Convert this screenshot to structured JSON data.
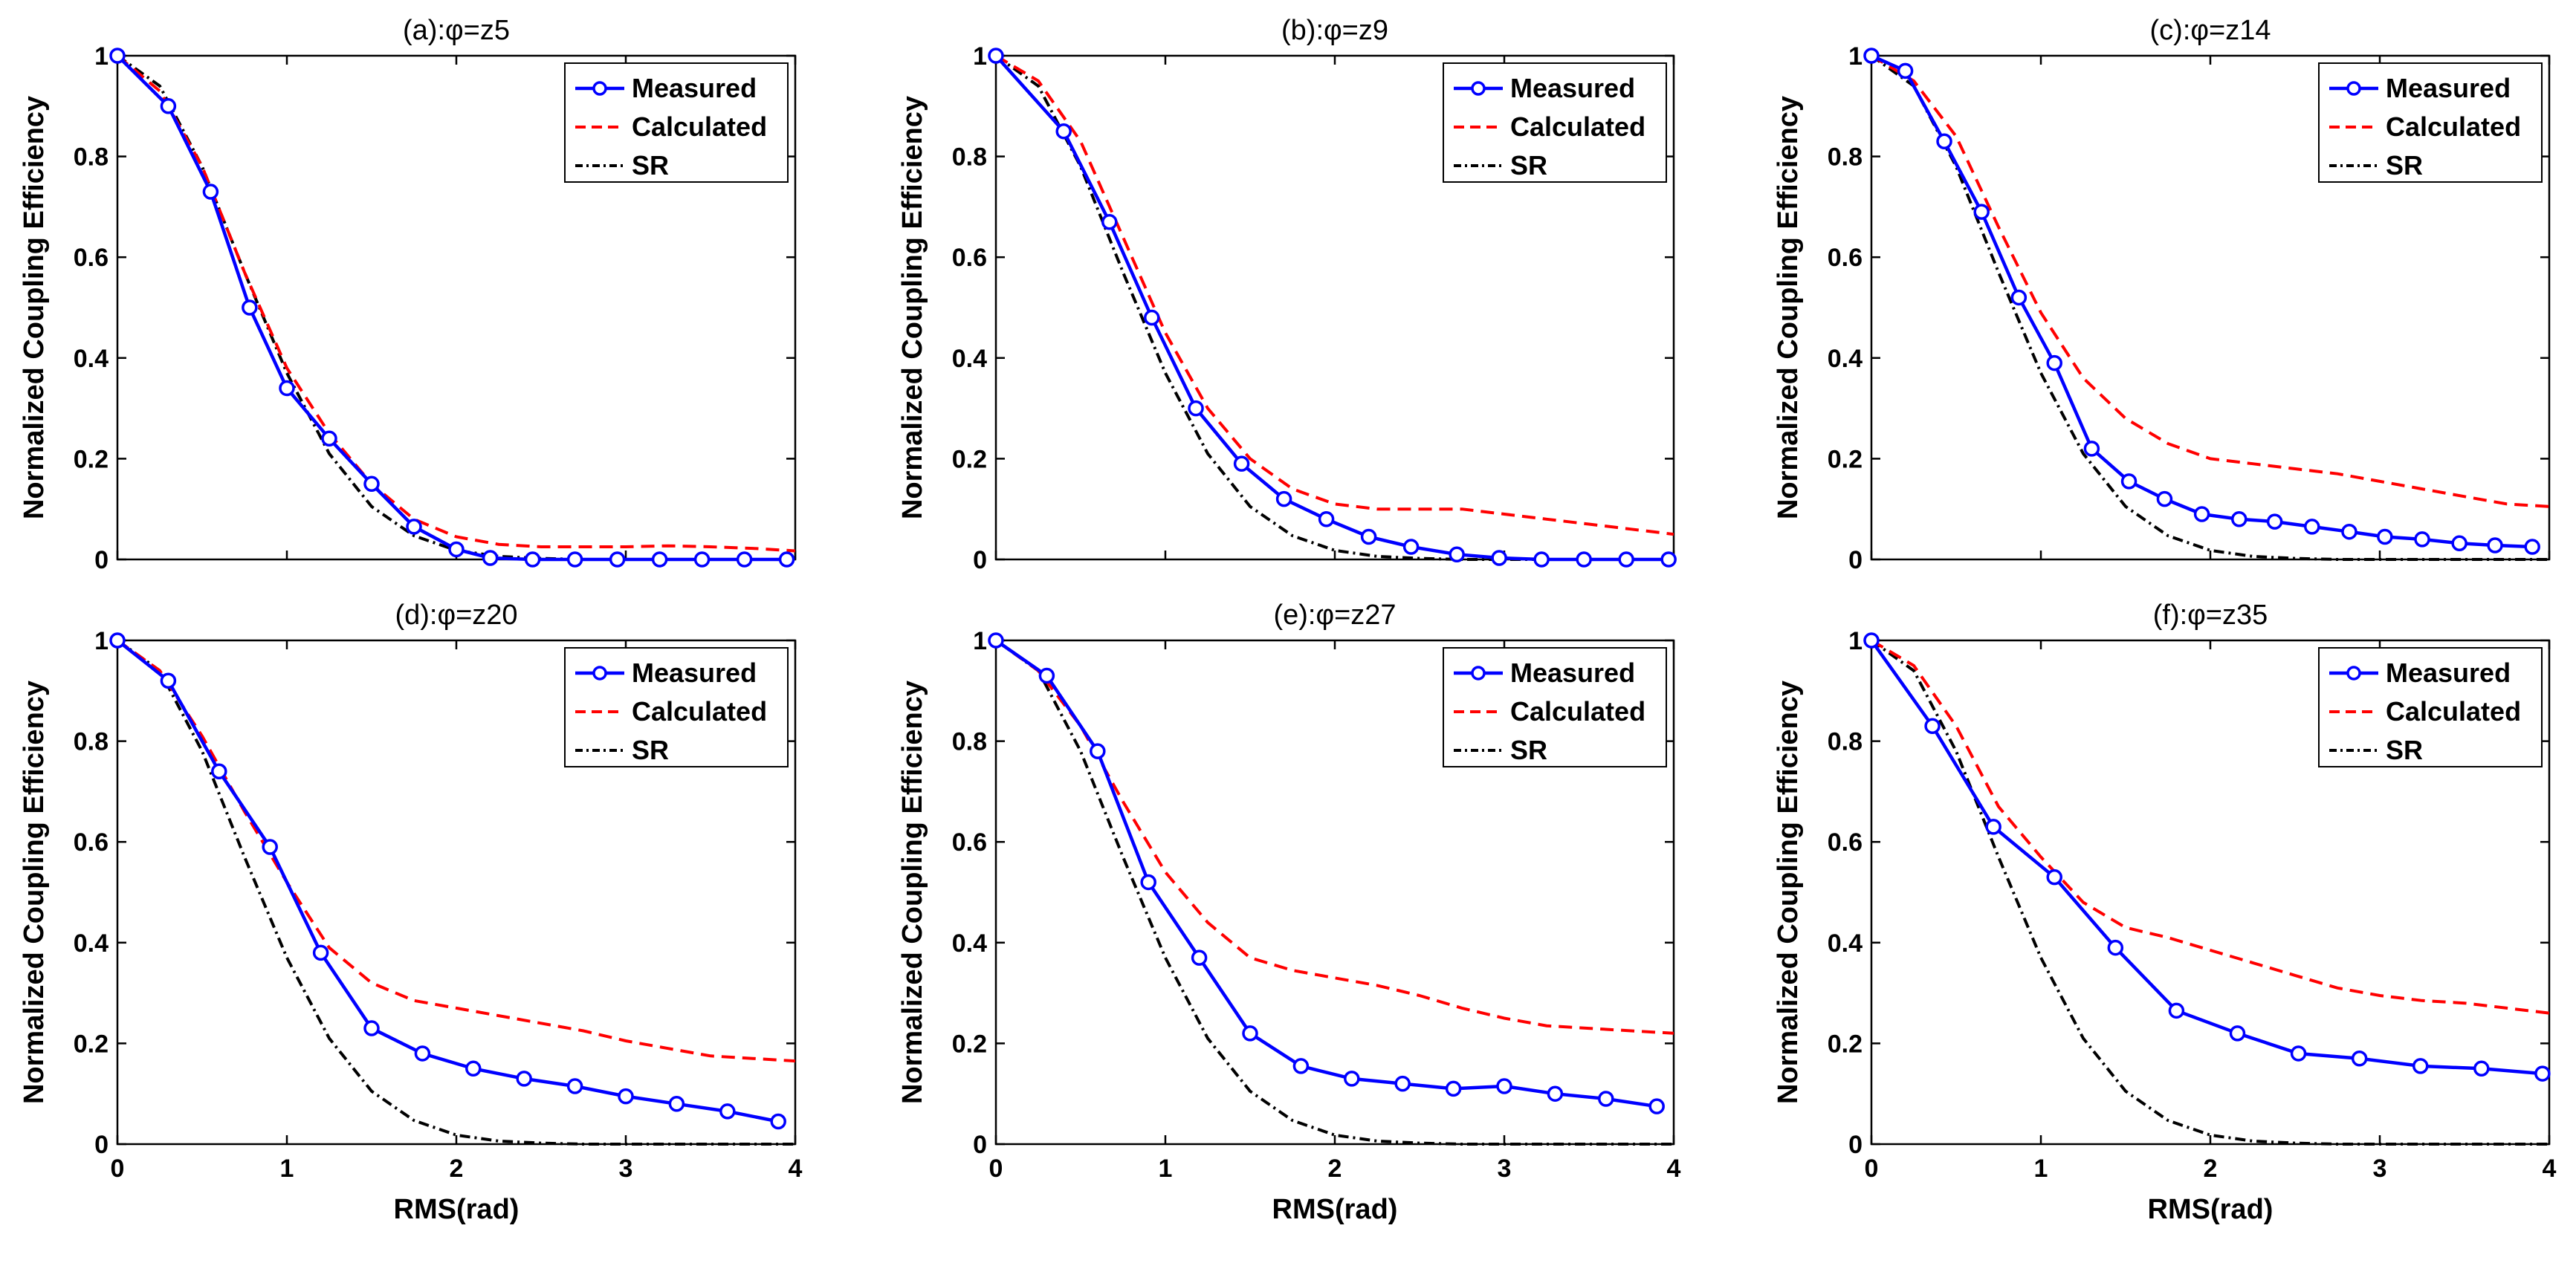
{
  "figure": {
    "background": "#ffffff",
    "colors": {
      "measured": "#0000ff",
      "calculated": "#ff0000",
      "sr": "#000000"
    },
    "legend_position": "top-right"
  },
  "chart_data": [
    {
      "type": "line",
      "title": "(a):φ=z5",
      "xlabel": "",
      "ylabel": "Normalized Coupling Efficiency",
      "xlim": [
        0,
        4
      ],
      "ylim": [
        0,
        1
      ],
      "xticks": [
        0,
        1,
        2,
        3,
        4
      ],
      "yticks": [
        0,
        0.2,
        0.4,
        0.6,
        0.8,
        1
      ],
      "xtick_labels": [
        "0",
        "1",
        "2",
        "3",
        "4"
      ],
      "ytick_labels": [
        "0",
        "0.2",
        "0.4",
        "0.6",
        "0.8",
        "1"
      ],
      "legend": "top-right",
      "grid": false,
      "series": [
        {
          "name": "Measured",
          "style": "solid-circle",
          "color": "#0000ff",
          "x": [
            0,
            0.3,
            0.55,
            0.78,
            1.0,
            1.25,
            1.5,
            1.75,
            2.0,
            2.2,
            2.45,
            2.7,
            2.95,
            3.2,
            3.45,
            3.7,
            3.95
          ],
          "y": [
            1.0,
            0.9,
            0.73,
            0.5,
            0.34,
            0.24,
            0.15,
            0.065,
            0.02,
            0.003,
            0.0,
            0.0,
            0.0,
            0.0,
            0.0,
            0.0,
            0.0
          ]
        },
        {
          "name": "Calculated",
          "style": "dashed",
          "color": "#ff0000",
          "x": [
            0,
            0.25,
            0.5,
            0.75,
            1.0,
            1.25,
            1.5,
            1.75,
            2.0,
            2.25,
            2.5,
            2.75,
            3.0,
            3.25,
            3.5,
            3.75,
            4.0
          ],
          "y": [
            1.0,
            0.93,
            0.78,
            0.57,
            0.38,
            0.25,
            0.15,
            0.08,
            0.045,
            0.03,
            0.025,
            0.025,
            0.025,
            0.027,
            0.025,
            0.022,
            0.017
          ]
        },
        {
          "name": "SR",
          "style": "dashdot",
          "color": "#000000",
          "x": [
            0,
            0.25,
            0.5,
            0.75,
            1.0,
            1.25,
            1.5,
            1.75,
            2.0,
            2.25,
            2.5,
            2.75,
            3.0,
            3.5,
            4.0
          ],
          "y": [
            1.0,
            0.94,
            0.78,
            0.57,
            0.37,
            0.21,
            0.105,
            0.047,
            0.018,
            0.006,
            0.002,
            0.0,
            0.0,
            0.0,
            0.0
          ]
        }
      ]
    },
    {
      "type": "line",
      "title": "(b):φ=z9",
      "xlabel": "",
      "ylabel": "Normalized Coupling Efficiency",
      "xlim": [
        0,
        4
      ],
      "ylim": [
        0,
        1
      ],
      "xticks": [
        0,
        1,
        2,
        3,
        4
      ],
      "yticks": [
        0,
        0.2,
        0.4,
        0.6,
        0.8,
        1
      ],
      "xtick_labels": [
        "0",
        "1",
        "2",
        "3",
        "4"
      ],
      "ytick_labels": [
        "0",
        "0.2",
        "0.4",
        "0.6",
        "0.8",
        "1"
      ],
      "legend": "top-right",
      "grid": false,
      "series": [
        {
          "name": "Measured",
          "style": "solid-circle",
          "color": "#0000ff",
          "x": [
            0,
            0.4,
            0.67,
            0.92,
            1.18,
            1.45,
            1.7,
            1.95,
            2.2,
            2.45,
            2.72,
            2.97,
            3.22,
            3.47,
            3.72,
            3.97
          ],
          "y": [
            1.0,
            0.85,
            0.67,
            0.48,
            0.3,
            0.19,
            0.12,
            0.08,
            0.045,
            0.025,
            0.01,
            0.003,
            0.0,
            0.0,
            0.0,
            0.0
          ]
        },
        {
          "name": "Calculated",
          "style": "dashed",
          "color": "#ff0000",
          "x": [
            0,
            0.25,
            0.5,
            0.75,
            1.0,
            1.25,
            1.5,
            1.75,
            2.0,
            2.25,
            2.5,
            2.75,
            3.0,
            3.25,
            3.5,
            3.75,
            4.0
          ],
          "y": [
            1.0,
            0.95,
            0.83,
            0.64,
            0.45,
            0.3,
            0.2,
            0.14,
            0.11,
            0.1,
            0.1,
            0.1,
            0.09,
            0.08,
            0.07,
            0.06,
            0.05
          ]
        },
        {
          "name": "SR",
          "style": "dashdot",
          "color": "#000000",
          "x": [
            0,
            0.25,
            0.5,
            0.75,
            1.0,
            1.25,
            1.5,
            1.75,
            2.0,
            2.25,
            2.5,
            2.75,
            3.0,
            3.5,
            4.0
          ],
          "y": [
            1.0,
            0.94,
            0.78,
            0.57,
            0.37,
            0.21,
            0.105,
            0.047,
            0.018,
            0.006,
            0.002,
            0.0,
            0.0,
            0.0,
            0.0
          ]
        }
      ]
    },
    {
      "type": "line",
      "title": "(c):φ=z14",
      "xlabel": "",
      "ylabel": "Normalized Coupling Efficiency",
      "xlim": [
        0,
        4
      ],
      "ylim": [
        0,
        1
      ],
      "xticks": [
        0,
        1,
        2,
        3,
        4
      ],
      "yticks": [
        0,
        0.2,
        0.4,
        0.6,
        0.8,
        1
      ],
      "xtick_labels": [
        "0",
        "1",
        "2",
        "3",
        "4"
      ],
      "ytick_labels": [
        "0",
        "0.2",
        "0.4",
        "0.6",
        "0.8",
        "1"
      ],
      "legend": "top-right",
      "grid": false,
      "series": [
        {
          "name": "Measured",
          "style": "solid-circle",
          "color": "#0000ff",
          "x": [
            0,
            0.2,
            0.43,
            0.65,
            0.87,
            1.08,
            1.3,
            1.52,
            1.73,
            1.95,
            2.17,
            2.38,
            2.6,
            2.82,
            3.03,
            3.25,
            3.47,
            3.68,
            3.9
          ],
          "y": [
            1.0,
            0.97,
            0.83,
            0.69,
            0.52,
            0.39,
            0.22,
            0.155,
            0.12,
            0.09,
            0.08,
            0.075,
            0.065,
            0.055,
            0.045,
            0.04,
            0.032,
            0.028,
            0.025
          ]
        },
        {
          "name": "Calculated",
          "style": "dashed",
          "color": "#ff0000",
          "x": [
            0,
            0.25,
            0.5,
            0.75,
            1.0,
            1.25,
            1.5,
            1.75,
            2.0,
            2.25,
            2.5,
            2.75,
            3.0,
            3.25,
            3.5,
            3.75,
            4.0
          ],
          "y": [
            1.0,
            0.95,
            0.84,
            0.66,
            0.49,
            0.36,
            0.28,
            0.23,
            0.2,
            0.19,
            0.18,
            0.17,
            0.155,
            0.14,
            0.125,
            0.11,
            0.105
          ]
        },
        {
          "name": "SR",
          "style": "dashdot",
          "color": "#000000",
          "x": [
            0,
            0.25,
            0.5,
            0.75,
            1.0,
            1.25,
            1.5,
            1.75,
            2.0,
            2.25,
            2.5,
            2.75,
            3.0,
            3.5,
            4.0
          ],
          "y": [
            1.0,
            0.94,
            0.78,
            0.57,
            0.37,
            0.21,
            0.105,
            0.047,
            0.018,
            0.006,
            0.002,
            0.0,
            0.0,
            0.0,
            0.0
          ]
        }
      ]
    },
    {
      "type": "line",
      "title": "(d):φ=z20",
      "xlabel": "RMS(rad)",
      "ylabel": "Normalized Coupling Efficiency",
      "xlim": [
        0,
        4
      ],
      "ylim": [
        0,
        1
      ],
      "xticks": [
        0,
        1,
        2,
        3,
        4
      ],
      "yticks": [
        0,
        0.2,
        0.4,
        0.6,
        0.8,
        1
      ],
      "xtick_labels": [
        "0",
        "1",
        "2",
        "3",
        "4"
      ],
      "ytick_labels": [
        "0",
        "0.2",
        "0.4",
        "0.6",
        "0.8",
        "1"
      ],
      "legend": "top-right",
      "grid": false,
      "series": [
        {
          "name": "Measured",
          "style": "solid-circle",
          "color": "#0000ff",
          "x": [
            0,
            0.3,
            0.6,
            0.9,
            1.2,
            1.5,
            1.8,
            2.1,
            2.4,
            2.7,
            3.0,
            3.3,
            3.6,
            3.9
          ],
          "y": [
            1.0,
            0.92,
            0.74,
            0.59,
            0.38,
            0.23,
            0.18,
            0.15,
            0.13,
            0.115,
            0.095,
            0.08,
            0.065,
            0.045
          ]
        },
        {
          "name": "Calculated",
          "style": "dashed",
          "color": "#ff0000",
          "x": [
            0,
            0.25,
            0.5,
            0.75,
            1.0,
            1.25,
            1.5,
            1.75,
            2.0,
            2.25,
            2.5,
            2.75,
            3.0,
            3.25,
            3.5,
            3.75,
            4.0
          ],
          "y": [
            1.0,
            0.94,
            0.81,
            0.66,
            0.52,
            0.39,
            0.32,
            0.285,
            0.27,
            0.255,
            0.24,
            0.225,
            0.205,
            0.19,
            0.175,
            0.17,
            0.165
          ]
        },
        {
          "name": "SR",
          "style": "dashdot",
          "color": "#000000",
          "x": [
            0,
            0.25,
            0.5,
            0.75,
            1.0,
            1.25,
            1.5,
            1.75,
            2.0,
            2.25,
            2.5,
            2.75,
            3.0,
            3.5,
            4.0
          ],
          "y": [
            1.0,
            0.94,
            0.78,
            0.57,
            0.37,
            0.21,
            0.105,
            0.047,
            0.018,
            0.006,
            0.002,
            0.0,
            0.0,
            0.0,
            0.0
          ]
        }
      ]
    },
    {
      "type": "line",
      "title": "(e):φ=z27",
      "xlabel": "RMS(rad)",
      "ylabel": "Normalized Coupling Efficiency",
      "xlim": [
        0,
        4
      ],
      "ylim": [
        0,
        1
      ],
      "xticks": [
        0,
        1,
        2,
        3,
        4
      ],
      "yticks": [
        0,
        0.2,
        0.4,
        0.6,
        0.8,
        1
      ],
      "xtick_labels": [
        "0",
        "1",
        "2",
        "3",
        "4"
      ],
      "ytick_labels": [
        "0",
        "0.2",
        "0.4",
        "0.6",
        "0.8",
        "1"
      ],
      "legend": "top-right",
      "grid": false,
      "series": [
        {
          "name": "Measured",
          "style": "solid-circle",
          "color": "#0000ff",
          "x": [
            0,
            0.3,
            0.6,
            0.9,
            1.2,
            1.5,
            1.8,
            2.1,
            2.4,
            2.7,
            3.0,
            3.3,
            3.6,
            3.9
          ],
          "y": [
            1.0,
            0.93,
            0.78,
            0.52,
            0.37,
            0.22,
            0.155,
            0.13,
            0.12,
            0.11,
            0.115,
            0.1,
            0.09,
            0.075
          ]
        },
        {
          "name": "Calculated",
          "style": "dashed",
          "color": "#ff0000",
          "x": [
            0,
            0.25,
            0.5,
            0.75,
            1.0,
            1.25,
            1.5,
            1.75,
            2.0,
            2.25,
            2.5,
            2.75,
            3.0,
            3.25,
            3.5,
            3.75,
            4.0
          ],
          "y": [
            1.0,
            0.94,
            0.83,
            0.68,
            0.54,
            0.44,
            0.37,
            0.345,
            0.33,
            0.315,
            0.295,
            0.27,
            0.25,
            0.235,
            0.23,
            0.225,
            0.22
          ]
        },
        {
          "name": "SR",
          "style": "dashdot",
          "color": "#000000",
          "x": [
            0,
            0.25,
            0.5,
            0.75,
            1.0,
            1.25,
            1.5,
            1.75,
            2.0,
            2.25,
            2.5,
            2.75,
            3.0,
            3.5,
            4.0
          ],
          "y": [
            1.0,
            0.94,
            0.78,
            0.57,
            0.37,
            0.21,
            0.105,
            0.047,
            0.018,
            0.006,
            0.002,
            0.0,
            0.0,
            0.0,
            0.0
          ]
        }
      ]
    },
    {
      "type": "line",
      "title": "(f):φ=z35",
      "xlabel": "RMS(rad)",
      "ylabel": "Normalized Coupling Efficiency",
      "xlim": [
        0,
        4
      ],
      "ylim": [
        0,
        1
      ],
      "xticks": [
        0,
        1,
        2,
        3,
        4
      ],
      "yticks": [
        0,
        0.2,
        0.4,
        0.6,
        0.8,
        1
      ],
      "xtick_labels": [
        "0",
        "1",
        "2",
        "3",
        "4"
      ],
      "ytick_labels": [
        "0",
        "0.2",
        "0.4",
        "0.6",
        "0.8",
        "1"
      ],
      "legend": "top-right",
      "grid": false,
      "series": [
        {
          "name": "Measured",
          "style": "solid-circle",
          "color": "#0000ff",
          "x": [
            0,
            0.36,
            0.72,
            1.08,
            1.44,
            1.8,
            2.16,
            2.52,
            2.88,
            3.24,
            3.6,
            3.96
          ],
          "y": [
            1.0,
            0.83,
            0.63,
            0.53,
            0.39,
            0.265,
            0.22,
            0.18,
            0.17,
            0.155,
            0.15,
            0.14
          ]
        },
        {
          "name": "Calculated",
          "style": "dashed",
          "color": "#ff0000",
          "x": [
            0,
            0.25,
            0.5,
            0.75,
            1.0,
            1.25,
            1.5,
            1.75,
            2.0,
            2.25,
            2.5,
            2.75,
            3.0,
            3.25,
            3.5,
            3.75,
            4.0
          ],
          "y": [
            1.0,
            0.95,
            0.83,
            0.67,
            0.57,
            0.48,
            0.43,
            0.41,
            0.385,
            0.36,
            0.335,
            0.31,
            0.295,
            0.285,
            0.28,
            0.27,
            0.26
          ]
        },
        {
          "name": "SR",
          "style": "dashdot",
          "color": "#000000",
          "x": [
            0,
            0.25,
            0.5,
            0.75,
            1.0,
            1.25,
            1.5,
            1.75,
            2.0,
            2.25,
            2.5,
            2.75,
            3.0,
            3.5,
            4.0
          ],
          "y": [
            1.0,
            0.94,
            0.78,
            0.57,
            0.37,
            0.21,
            0.105,
            0.047,
            0.018,
            0.006,
            0.002,
            0.0,
            0.0,
            0.0,
            0.0
          ]
        }
      ]
    }
  ]
}
